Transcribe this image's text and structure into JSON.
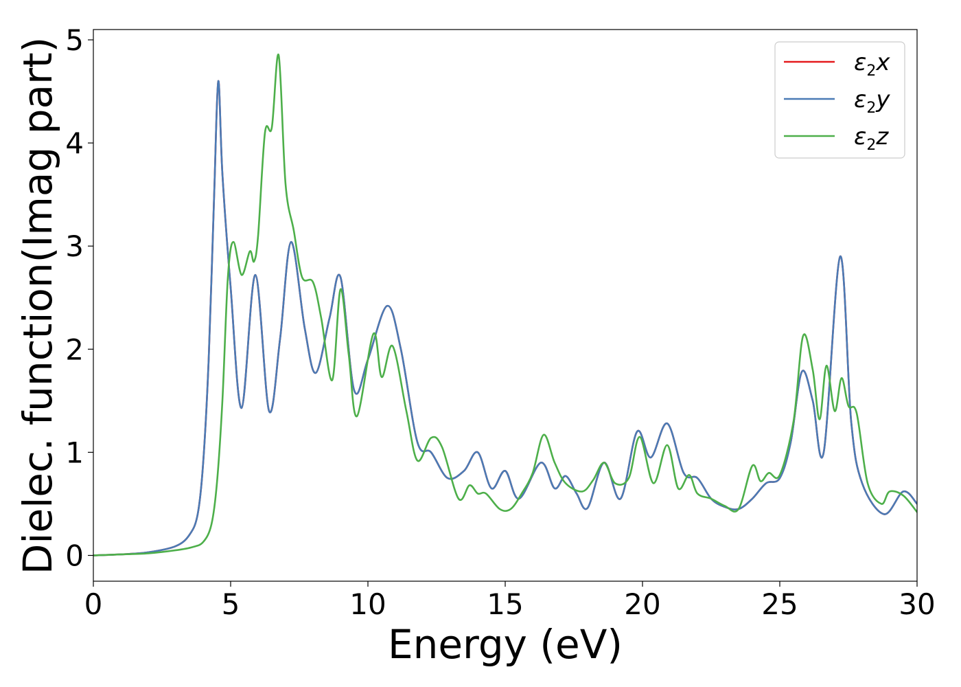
{
  "chart_data": {
    "type": "line",
    "title": "",
    "xlabel": "Energy (eV)",
    "ylabel": "Dielec. function(Imag part)",
    "xlim": [
      0,
      30
    ],
    "ylim": [
      -0.25,
      5.1
    ],
    "xticks": [
      0,
      5,
      10,
      15,
      20,
      25,
      30
    ],
    "xtick_labels": [
      "0",
      "5",
      "10",
      "15",
      "20",
      "25",
      "30"
    ],
    "yticks": [
      0,
      1,
      2,
      3,
      4,
      5
    ],
    "ytick_labels": [
      "0",
      "1",
      "2",
      "3",
      "4",
      "5"
    ],
    "grid": false,
    "legend_position": "top-right",
    "series": [
      {
        "name": "ε₂x",
        "legend_base": "ε",
        "legend_sub": "2",
        "legend_suffix": "x",
        "color": "#e41a1c",
        "x": [
          0,
          1,
          2,
          3,
          3.5,
          3.8,
          4.0,
          4.2,
          4.4,
          4.55,
          4.7,
          5.0,
          5.4,
          5.9,
          6.4,
          6.8,
          7.2,
          7.7,
          8.1,
          8.6,
          9.0,
          9.5,
          10.0,
          10.7,
          11.2,
          11.8,
          12.3,
          12.9,
          13.5,
          14.0,
          14.5,
          15.0,
          15.5,
          16.3,
          16.8,
          17.2,
          17.6,
          18.0,
          18.6,
          19.2,
          19.8,
          20.3,
          20.9,
          21.5,
          22.0,
          22.5,
          23.0,
          23.5,
          24.0,
          24.5,
          25.0,
          25.4,
          25.8,
          26.2,
          26.6,
          27.2,
          27.6,
          28.0,
          28.8,
          29.5,
          30.0
        ],
        "y": [
          0.0,
          0.01,
          0.03,
          0.09,
          0.2,
          0.4,
          0.9,
          1.9,
          3.5,
          4.6,
          3.7,
          2.6,
          1.43,
          2.72,
          1.4,
          2.1,
          3.04,
          2.2,
          1.77,
          2.3,
          2.7,
          1.6,
          1.9,
          2.42,
          2.0,
          1.1,
          1.0,
          0.75,
          0.82,
          1.0,
          0.65,
          0.82,
          0.55,
          0.9,
          0.65,
          0.77,
          0.6,
          0.46,
          0.9,
          0.55,
          1.2,
          0.95,
          1.28,
          0.8,
          0.75,
          0.55,
          0.47,
          0.45,
          0.55,
          0.7,
          0.75,
          1.1,
          1.78,
          1.5,
          1.0,
          2.9,
          1.3,
          0.7,
          0.4,
          0.62,
          0.5
        ]
      },
      {
        "name": "ε₂y",
        "legend_base": "ε",
        "legend_sub": "2",
        "legend_suffix": "y",
        "color": "#4a7bb5",
        "x": [
          0,
          1,
          2,
          3,
          3.5,
          3.8,
          4.0,
          4.2,
          4.4,
          4.55,
          4.7,
          5.0,
          5.4,
          5.9,
          6.4,
          6.8,
          7.2,
          7.7,
          8.1,
          8.6,
          9.0,
          9.5,
          10.0,
          10.7,
          11.2,
          11.8,
          12.3,
          12.9,
          13.5,
          14.0,
          14.5,
          15.0,
          15.5,
          16.3,
          16.8,
          17.2,
          17.6,
          18.0,
          18.6,
          19.2,
          19.8,
          20.3,
          20.9,
          21.5,
          22.0,
          22.5,
          23.0,
          23.5,
          24.0,
          24.5,
          25.0,
          25.4,
          25.8,
          26.2,
          26.6,
          27.2,
          27.6,
          28.0,
          28.8,
          29.5,
          30.0
        ],
        "y": [
          0.0,
          0.01,
          0.03,
          0.09,
          0.2,
          0.4,
          0.9,
          1.9,
          3.5,
          4.6,
          3.7,
          2.6,
          1.43,
          2.72,
          1.4,
          2.1,
          3.04,
          2.2,
          1.77,
          2.3,
          2.7,
          1.6,
          1.9,
          2.42,
          2.0,
          1.1,
          1.0,
          0.75,
          0.82,
          1.0,
          0.65,
          0.82,
          0.55,
          0.9,
          0.65,
          0.77,
          0.6,
          0.46,
          0.9,
          0.55,
          1.2,
          0.95,
          1.28,
          0.8,
          0.75,
          0.55,
          0.47,
          0.45,
          0.55,
          0.7,
          0.75,
          1.1,
          1.78,
          1.5,
          1.0,
          2.9,
          1.3,
          0.7,
          0.4,
          0.62,
          0.5
        ]
      },
      {
        "name": "ε₂z",
        "legend_base": "ε",
        "legend_sub": "2",
        "legend_suffix": "z",
        "color": "#4daf4a",
        "x": [
          0,
          1,
          2,
          3,
          3.6,
          4.0,
          4.3,
          4.5,
          4.7,
          4.9,
          5.1,
          5.4,
          5.7,
          5.85,
          6.0,
          6.25,
          6.5,
          6.75,
          7.0,
          7.3,
          7.6,
          8.0,
          8.3,
          8.7,
          9.0,
          9.3,
          9.6,
          10.2,
          10.5,
          10.9,
          11.4,
          11.8,
          12.3,
          12.7,
          13.3,
          13.7,
          14.0,
          14.3,
          14.8,
          15.2,
          15.6,
          16.0,
          16.4,
          16.8,
          17.2,
          17.8,
          18.2,
          18.6,
          19.0,
          19.5,
          19.9,
          20.4,
          20.9,
          21.3,
          21.7,
          22.0,
          22.5,
          23.0,
          23.5,
          24.0,
          24.3,
          24.6,
          25.0,
          25.5,
          25.85,
          26.2,
          26.45,
          26.7,
          27.0,
          27.25,
          27.5,
          27.8,
          28.2,
          28.7,
          29.0,
          29.5,
          30.0
        ],
        "y": [
          0.0,
          0.01,
          0.02,
          0.05,
          0.08,
          0.13,
          0.3,
          0.7,
          1.5,
          2.7,
          3.04,
          2.72,
          2.95,
          2.85,
          3.1,
          4.1,
          4.15,
          4.85,
          3.6,
          3.15,
          2.7,
          2.65,
          2.3,
          1.7,
          2.58,
          1.95,
          1.35,
          2.15,
          1.73,
          2.03,
          1.4,
          0.92,
          1.14,
          1.05,
          0.55,
          0.68,
          0.6,
          0.6,
          0.45,
          0.45,
          0.6,
          0.8,
          1.17,
          0.9,
          0.7,
          0.62,
          0.73,
          0.9,
          0.7,
          0.75,
          1.15,
          0.7,
          1.07,
          0.65,
          0.78,
          0.6,
          0.55,
          0.48,
          0.45,
          0.87,
          0.72,
          0.8,
          0.78,
          1.3,
          2.13,
          1.8,
          1.32,
          1.84,
          1.4,
          1.72,
          1.45,
          1.38,
          0.7,
          0.5,
          0.62,
          0.58,
          0.42
        ]
      }
    ]
  }
}
